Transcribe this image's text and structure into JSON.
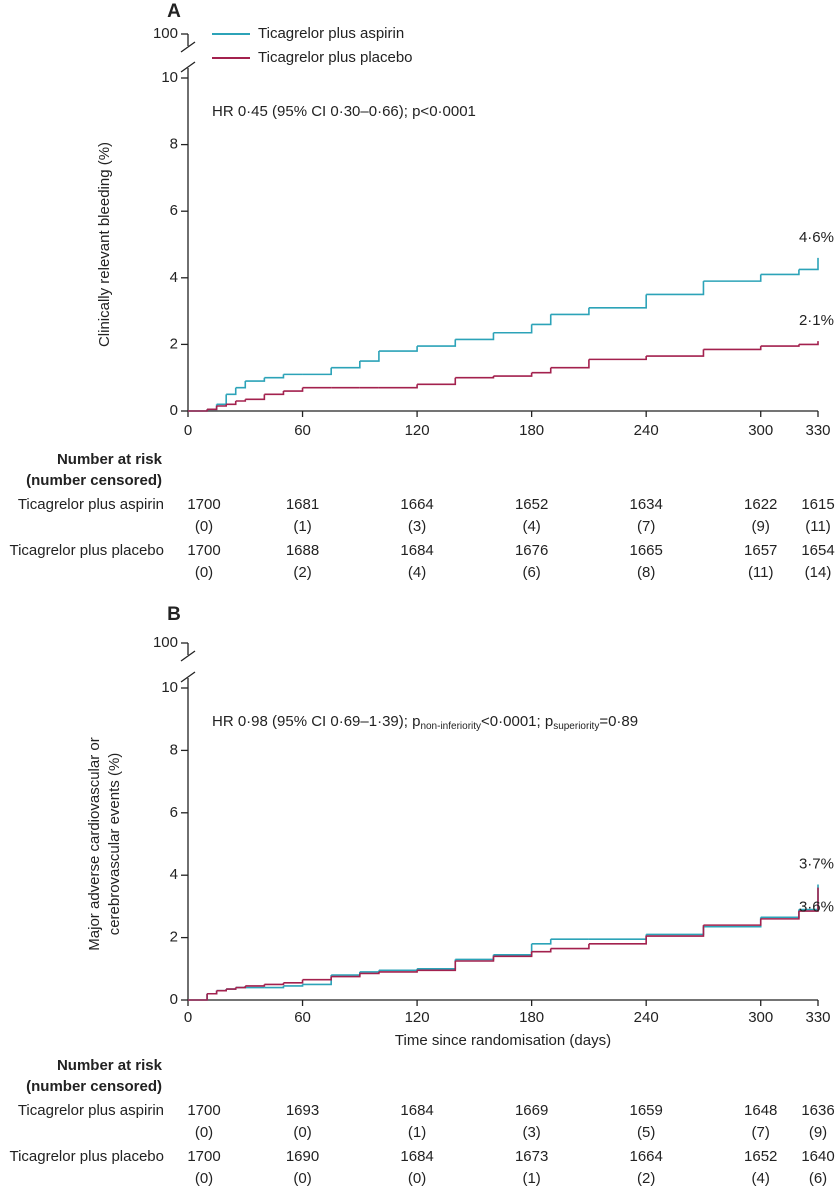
{
  "chart_data": [
    {
      "type": "line",
      "step": true,
      "panel": "A",
      "ylabel": [
        "Clinically relevant bleeding (%)"
      ],
      "annotation": [
        {
          "text": "HR 0·45 (95% CI 0·30–0·66); p<0·0001"
        }
      ],
      "legend": true,
      "x": [
        0,
        10,
        15,
        20,
        25,
        30,
        40,
        50,
        60,
        75,
        90,
        100,
        120,
        140,
        160,
        180,
        190,
        210,
        240,
        270,
        300,
        320,
        330
      ],
      "series": [
        {
          "name": "Ticagrelor plus aspirin",
          "color": "#2ca3b8",
          "end_label": "4·6%",
          "values": [
            0,
            0.05,
            0.2,
            0.5,
            0.7,
            0.9,
            1.0,
            1.1,
            1.1,
            1.3,
            1.5,
            1.8,
            1.95,
            2.15,
            2.35,
            2.6,
            2.9,
            3.1,
            3.5,
            3.9,
            4.1,
            4.25,
            4.6
          ]
        },
        {
          "name": "Ticagrelor plus placebo",
          "color": "#a3214e",
          "end_label": "2·1%",
          "values": [
            0,
            0.05,
            0.15,
            0.2,
            0.3,
            0.35,
            0.5,
            0.6,
            0.7,
            0.7,
            0.7,
            0.7,
            0.8,
            1.0,
            1.05,
            1.15,
            1.3,
            1.55,
            1.65,
            1.85,
            1.95,
            2.0,
            2.1
          ]
        }
      ],
      "xlim": [
        0,
        330
      ],
      "xticks": [
        0,
        60,
        120,
        180,
        240,
        300,
        330
      ],
      "ylim": [
        0,
        10
      ],
      "yticks": [
        0,
        2,
        4,
        6,
        8,
        10
      ],
      "ybreak_tick": 100,
      "risk_table": {
        "title": [
          "Number at risk",
          "(number censored)"
        ],
        "rows": [
          {
            "name": "Ticagrelor plus aspirin",
            "at_risk": [
              1700,
              1681,
              1664,
              1652,
              1634,
              1622,
              1615
            ],
            "censored": [
              "(0)",
              "(1)",
              "(3)",
              "(4)",
              "(7)",
              "(9)",
              "(11)"
            ]
          },
          {
            "name": "Ticagrelor plus placebo",
            "at_risk": [
              1700,
              1688,
              1684,
              1676,
              1665,
              1657,
              1654
            ],
            "censored": [
              "(0)",
              "(2)",
              "(4)",
              "(6)",
              "(8)",
              "(11)",
              "(14)"
            ]
          }
        ]
      }
    },
    {
      "type": "line",
      "step": true,
      "panel": "B",
      "ylabel": [
        "Major adverse cardiovascular or",
        "cerebrovascular events (%)"
      ],
      "xlabel": "Time since randomisation (days)",
      "annotation": [
        {
          "text": "HR 0·98 (95% CI 0·69–1·39); p"
        },
        {
          "text": "non-inferiority",
          "sub": true
        },
        {
          "text": "<0·0001; p"
        },
        {
          "text": "superiority",
          "sub": true
        },
        {
          "text": "=0·89"
        }
      ],
      "legend": false,
      "x": [
        0,
        10,
        15,
        20,
        25,
        30,
        40,
        50,
        60,
        75,
        90,
        100,
        120,
        140,
        160,
        180,
        190,
        210,
        240,
        270,
        300,
        320,
        330
      ],
      "series": [
        {
          "name": "Ticagrelor plus aspirin",
          "color": "#2ca3b8",
          "end_label": "3·7%",
          "values": [
            0,
            0.2,
            0.3,
            0.35,
            0.4,
            0.4,
            0.4,
            0.45,
            0.5,
            0.8,
            0.9,
            0.95,
            1.0,
            1.3,
            1.45,
            1.8,
            1.95,
            1.95,
            2.1,
            2.35,
            2.65,
            2.9,
            3.7
          ]
        },
        {
          "name": "Ticagrelor plus placebo",
          "color": "#a3214e",
          "end_label": "3·6%",
          "values": [
            0,
            0.2,
            0.3,
            0.35,
            0.4,
            0.45,
            0.5,
            0.55,
            0.65,
            0.75,
            0.85,
            0.9,
            0.95,
            1.25,
            1.4,
            1.55,
            1.65,
            1.8,
            2.05,
            2.4,
            2.6,
            2.85,
            3.6
          ]
        }
      ],
      "xlim": [
        0,
        330
      ],
      "xticks": [
        0,
        60,
        120,
        180,
        240,
        300,
        330
      ],
      "ylim": [
        0,
        10
      ],
      "yticks": [
        0,
        2,
        4,
        6,
        8,
        10
      ],
      "ybreak_tick": 100,
      "risk_table": {
        "title": [
          "Number at risk",
          "(number censored)"
        ],
        "rows": [
          {
            "name": "Ticagrelor plus aspirin",
            "at_risk": [
              1700,
              1693,
              1684,
              1669,
              1659,
              1648,
              1636
            ],
            "censored": [
              "(0)",
              "(0)",
              "(1)",
              "(3)",
              "(5)",
              "(7)",
              "(9)"
            ]
          },
          {
            "name": "Ticagrelor plus placebo",
            "at_risk": [
              1700,
              1690,
              1684,
              1673,
              1664,
              1652,
              1640
            ],
            "censored": [
              "(0)",
              "(0)",
              "(0)",
              "(1)",
              "(2)",
              "(4)",
              "(6)"
            ]
          }
        ]
      }
    }
  ]
}
